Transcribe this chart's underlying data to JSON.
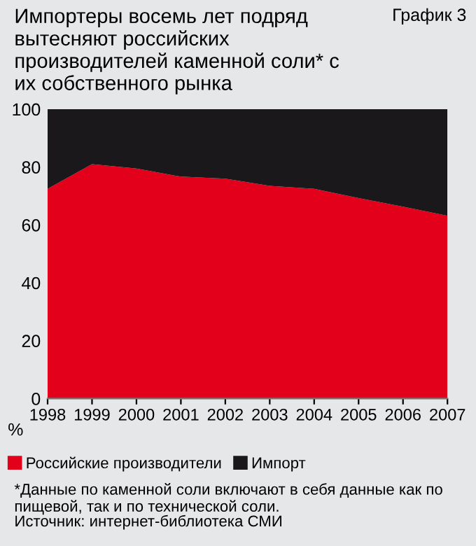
{
  "chart_data": {
    "type": "area",
    "title": "Импортеры восемь лет подряд вытесняют российских производителей каменной соли* с их собственного рынка",
    "subtitle": "График 3",
    "ylabel": "%",
    "categories": [
      "1998",
      "1999",
      "2000",
      "2001",
      "2002",
      "2003",
      "2004",
      "2005",
      "2006",
      "2007"
    ],
    "stacked": true,
    "series": [
      {
        "name": "Российские производители",
        "color": "#e2001a",
        "values": [
          72.5,
          81,
          79.5,
          76.7,
          76,
          73.5,
          72.5,
          69.3,
          66.3,
          63.2
        ]
      },
      {
        "name": "Импорт",
        "color": "#1b181c",
        "values": [
          27.5,
          19,
          20.5,
          23.3,
          24,
          26.5,
          27.5,
          30.7,
          33.7,
          36.8
        ]
      }
    ],
    "ylim": [
      0,
      100
    ],
    "yticks": [
      0,
      20,
      40,
      60,
      80,
      100
    ],
    "grid": false,
    "legend": "bottom left",
    "annotations": [
      "*Данные по каменной соли включают в себя данные как по пищевой, так и по технической соли.",
      "Источник: интернет-библиотека СМИ"
    ]
  }
}
